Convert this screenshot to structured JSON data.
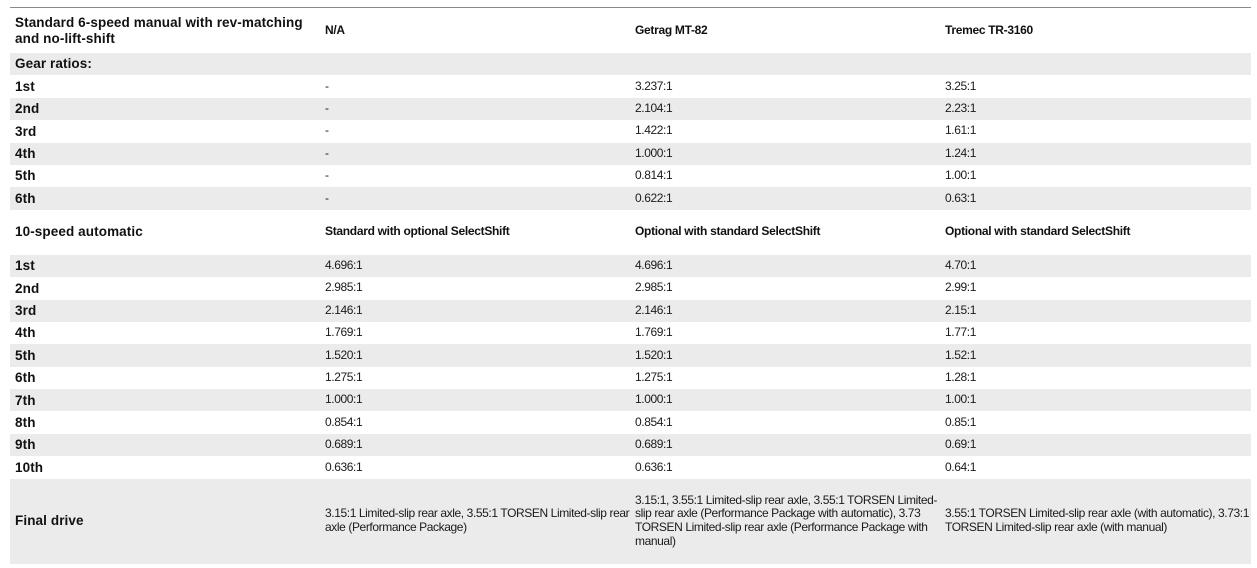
{
  "manual_header": {
    "label": "Standard 6-speed manual with rev-matching and no-lift-shift",
    "col1": "N/A",
    "col2": "Getrag MT-82",
    "col3": "Tremec TR-3160"
  },
  "gear_ratios_label": "Gear ratios:",
  "manual_rows": [
    {
      "gear": "1st",
      "col1": "-",
      "col2": "3.237:1",
      "col3": "3.25:1"
    },
    {
      "gear": "2nd",
      "col1": "-",
      "col2": "2.104:1",
      "col3": "2.23:1"
    },
    {
      "gear": "3rd",
      "col1": "-",
      "col2": "1.422:1",
      "col3": "1.61:1"
    },
    {
      "gear": "4th",
      "col1": "-",
      "col2": "1.000:1",
      "col3": "1.24:1"
    },
    {
      "gear": "5th",
      "col1": "-",
      "col2": "0.814:1",
      "col3": "1.00:1"
    },
    {
      "gear": "6th",
      "col1": "-",
      "col2": "0.622:1",
      "col3": "0.63:1"
    }
  ],
  "auto_header": {
    "label": "10-speed automatic",
    "col1": "Standard with optional SelectShift",
    "col2": "Optional with standard SelectShift",
    "col3": "Optional with standard SelectShift"
  },
  "auto_rows": [
    {
      "gear": "1st",
      "col1": "4.696:1",
      "col2": "4.696:1",
      "col3": "4.70:1"
    },
    {
      "gear": "2nd",
      "col1": "2.985:1",
      "col2": "2.985:1",
      "col3": "2.99:1"
    },
    {
      "gear": "3rd",
      "col1": "2.146:1",
      "col2": "2.146:1",
      "col3": "2.15:1"
    },
    {
      "gear": "4th",
      "col1": "1.769:1",
      "col2": "1.769:1",
      "col3": "1.77:1"
    },
    {
      "gear": "5th",
      "col1": "1.520:1",
      "col2": "1.520:1",
      "col3": "1.52:1"
    },
    {
      "gear": "6th",
      "col1": "1.275:1",
      "col2": "1.275:1",
      "col3": "1.28:1"
    },
    {
      "gear": "7th",
      "col1": "1.000:1",
      "col2": "1.000:1",
      "col3": "1.00:1"
    },
    {
      "gear": "8th",
      "col1": "0.854:1",
      "col2": "0.854:1",
      "col3": "0.85:1"
    },
    {
      "gear": "9th",
      "col1": "0.689:1",
      "col2": "0.689:1",
      "col3": "0.69:1"
    },
    {
      "gear": "10th",
      "col1": "0.636:1",
      "col2": "0.636:1",
      "col3": "0.64:1"
    }
  ],
  "final_drive": {
    "label": "Final drive",
    "col1": "3.15:1 Limited-slip rear axle, 3.55:1 TORSEN Limited-slip rear axle (Performance Package)",
    "col2": "3.15:1, 3.55:1 Limited-slip rear axle, 3.55:1 TORSEN Limited-slip rear axle (Performance Package with automatic), 3.73 TORSEN Limited-slip rear axle (Performance Package with manual)",
    "col3": "3.55:1 TORSEN Limited-slip rear axle (with automatic), 3.73:1 TORSEN Limited-slip rear axle (with manual)"
  }
}
